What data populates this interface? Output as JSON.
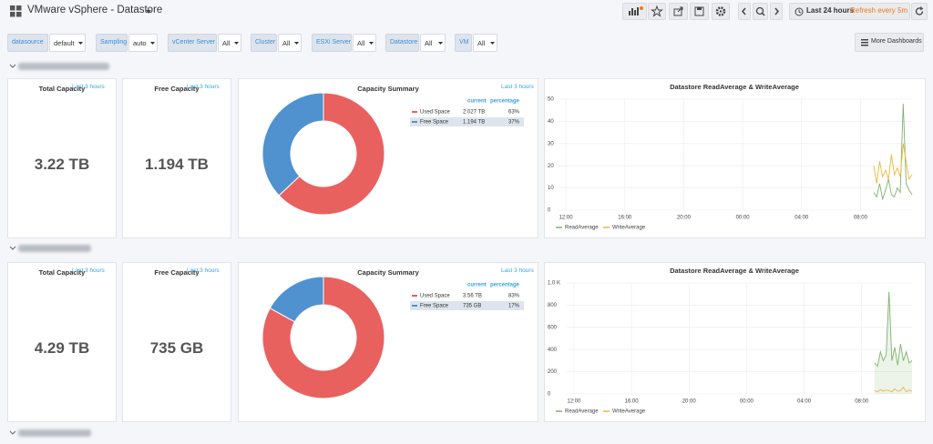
{
  "header": {
    "title": "VMware vSphere - Datastore",
    "time_range": "Last 24 hours",
    "refresh": "Refresh every 5m",
    "more_dashboards": "More Dashboards"
  },
  "variables": [
    {
      "label": "datasource",
      "value": "default"
    },
    {
      "label": "Sampling",
      "value": "auto"
    },
    {
      "label": "vCenter Server",
      "value": "All"
    },
    {
      "label": "Cluster",
      "value": "All"
    },
    {
      "label": "ESXi Server",
      "value": "All"
    },
    {
      "label": "Datastore",
      "value": "All"
    },
    {
      "label": "VM",
      "value": "All"
    }
  ],
  "rows": [
    {
      "panels": {
        "total": {
          "title": "Total Capacity",
          "time": "Last 3 hours",
          "value": "3.22 TB"
        },
        "free": {
          "title": "Free Capacity",
          "time": "Last 3 hours",
          "value": "1.194 TB"
        },
        "summary": {
          "title": "Capacity Summary",
          "time": "Last 3 hours",
          "columns": [
            "current",
            "percentage"
          ],
          "items": [
            {
              "name": "Used Space",
              "color": "#e8615f",
              "current": "2.027 TB"
            },
            {
              "name": "Free Space",
              "color": "#4f92cf",
              "current": "1.194 TB"
            }
          ],
          "values": [
            63,
            37
          ],
          "value_labels": [
            "63%",
            "37%"
          ]
        },
        "timeseries": {
          "title": "Datastore ReadAverage & WriteAverage",
          "xlim": [
            0,
            24
          ],
          "xticks": [
            {
              "value": 0.5,
              "label": "12:00"
            },
            {
              "value": 4.5,
              "label": "16:00"
            },
            {
              "value": 8.5,
              "label": "20:00"
            },
            {
              "value": 12.5,
              "label": "00:00"
            },
            {
              "value": 16.5,
              "label": "04:00"
            },
            {
              "value": 20.5,
              "label": "08:00"
            }
          ],
          "ylim": [
            0,
            50
          ],
          "yticks": [
            0,
            10,
            20,
            30,
            40,
            50
          ],
          "x": [
            21.4,
            21.6,
            21.8,
            22.0,
            22.2,
            22.4,
            22.6,
            22.8,
            23.0,
            23.2,
            23.4,
            23.6,
            23.8,
            24.0
          ],
          "series": [
            {
              "name": "ReadAverage",
              "color": "#7eb26d",
              "values": [
                8,
                6,
                12,
                5,
                9,
                14,
                7,
                6,
                10,
                8,
                48,
                12,
                9,
                7
              ]
            },
            {
              "name": "WriteAverage",
              "color": "#eab839",
              "values": [
                20,
                12,
                22,
                15,
                18,
                14,
                25,
                16,
                19,
                15,
                30,
                22,
                14,
                16
              ]
            }
          ]
        }
      }
    },
    {
      "panels": {
        "total": {
          "title": "Total Capacity",
          "time": "Last 3 hours",
          "value": "4.29 TB"
        },
        "free": {
          "title": "Free Capacity",
          "time": "Last 3 hours",
          "value": "735 GB"
        },
        "summary": {
          "title": "Capacity Summary",
          "time": "Last 3 hours",
          "columns": [
            "current",
            "percentage"
          ],
          "items": [
            {
              "name": "Used Space",
              "color": "#e8615f",
              "current": "3.56 TB"
            },
            {
              "name": "Free Space",
              "color": "#4f92cf",
              "current": "735 GB"
            }
          ],
          "values": [
            83,
            17
          ],
          "value_labels": [
            "83%",
            "17%"
          ]
        },
        "timeseries": {
          "title": "Datastore ReadAverage & WriteAverage",
          "xlim": [
            0,
            24
          ],
          "xticks": [
            {
              "value": 0.5,
              "label": "12:00"
            },
            {
              "value": 4.5,
              "label": "16:00"
            },
            {
              "value": 8.5,
              "label": "20:00"
            },
            {
              "value": 12.5,
              "label": "00:00"
            },
            {
              "value": 16.5,
              "label": "04:00"
            },
            {
              "value": 20.5,
              "label": "08:00"
            }
          ],
          "ylim": [
            0,
            1000
          ],
          "yticks": [
            0,
            200,
            400,
            600,
            800,
            {
              "value": 1000,
              "label": "1.0 K"
            }
          ],
          "x": [
            21.4,
            21.6,
            21.8,
            22.0,
            22.2,
            22.4,
            22.6,
            22.8,
            23.0,
            23.2,
            23.4,
            23.6,
            23.8,
            24.0
          ],
          "series": [
            {
              "name": "ReadAverage",
              "color": "#7eb26d",
              "values": [
                280,
                250,
                380,
                300,
                350,
                920,
                300,
                420,
                260,
                450,
                300,
                380,
                280,
                300
              ]
            },
            {
              "name": "WriteAverage",
              "color": "#eab839",
              "values": [
                30,
                20,
                40,
                25,
                35,
                30,
                20,
                45,
                25,
                30,
                60,
                20,
                35,
                25
              ]
            }
          ]
        }
      }
    }
  ]
}
